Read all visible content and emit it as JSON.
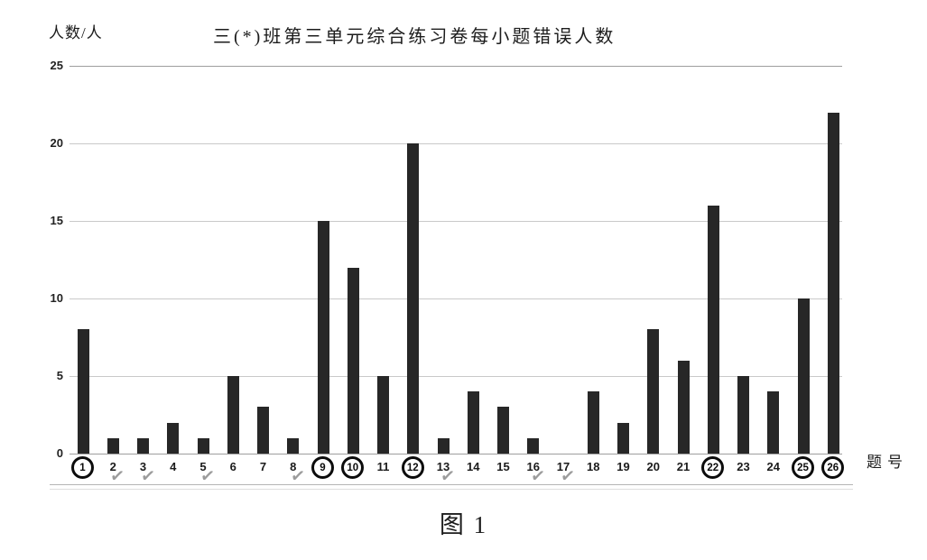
{
  "header": {
    "y_axis_unit_label": "人数/人"
  },
  "chart_data": {
    "type": "bar",
    "title": "三(*)班第三单元综合练习卷每小题错误人数",
    "xlabel": "题号",
    "ylabel": "人数/人",
    "categories": [
      1,
      2,
      3,
      4,
      5,
      6,
      7,
      8,
      9,
      10,
      11,
      12,
      13,
      14,
      15,
      16,
      17,
      18,
      19,
      20,
      21,
      22,
      23,
      24,
      25,
      26
    ],
    "values": [
      8,
      1,
      1,
      2,
      1,
      5,
      3,
      1,
      15,
      12,
      5,
      20,
      1,
      4,
      3,
      1,
      0,
      4,
      2,
      8,
      6,
      16,
      5,
      4,
      10,
      22
    ],
    "ylim": [
      0,
      25
    ],
    "yticks": [
      0,
      5,
      10,
      15,
      20,
      25
    ],
    "grid": true,
    "legend": false,
    "circled_categories": [
      1,
      9,
      10,
      12,
      22,
      25,
      26
    ],
    "checked_categories": [
      2,
      3,
      5,
      8,
      13,
      16,
      17
    ],
    "bar_color": "#272727",
    "gridline_color": "#c9c9c9",
    "check_color": "#9b9b9b"
  },
  "caption": "图 1"
}
